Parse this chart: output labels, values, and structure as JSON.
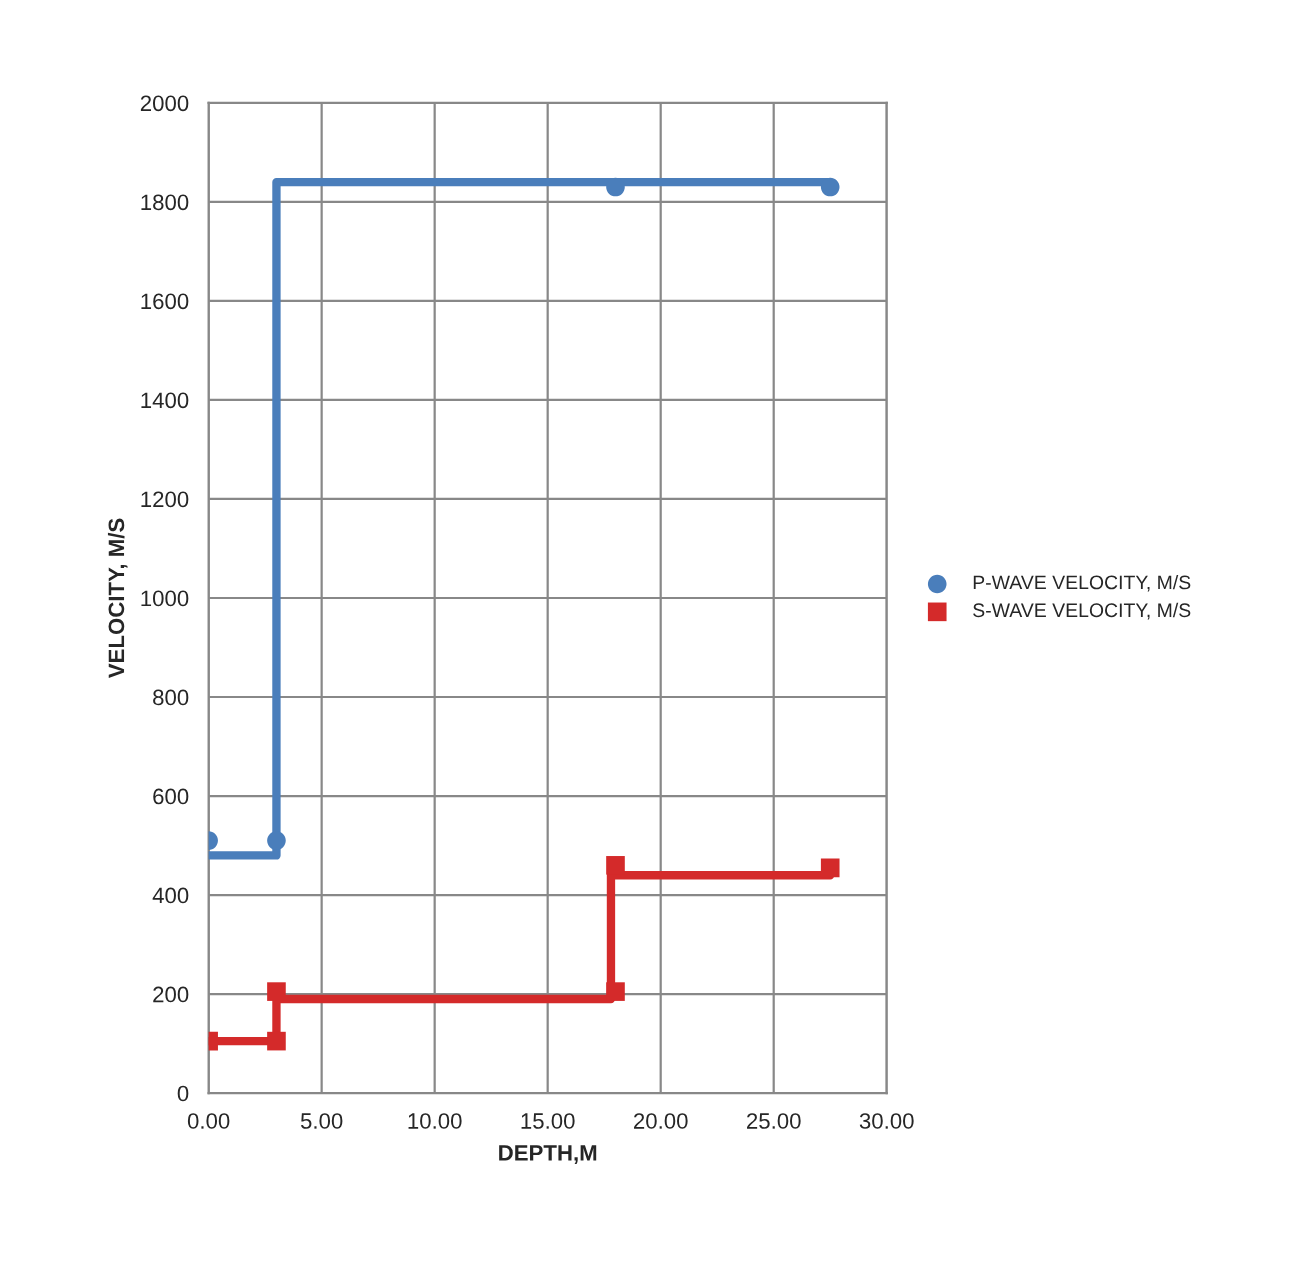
{
  "chart_data": {
    "type": "scatter",
    "xlabel": "DEPTH,M",
    "ylabel": "VELOCITY, M/S",
    "series": [
      {
        "name": "P-WAVE VELOCITY, M/S",
        "marker": "circle",
        "color": "#4a7ebb",
        "x": [
          0,
          3,
          18,
          27.5
        ],
        "values": [
          510,
          510,
          1830,
          1830
        ]
      },
      {
        "name": "S-WAVE VELOCITY, M/S",
        "marker": "square",
        "color": "#d42a2a",
        "x": [
          0,
          3,
          3,
          18,
          18,
          27.5
        ],
        "values": [
          105,
          105,
          205,
          205,
          460,
          455
        ]
      },
      {
        "type": "line",
        "color": "#4a7ebb",
        "x": [
          0,
          3,
          3,
          27.5
        ],
        "values": [
          480,
          480,
          1840,
          1840
        ]
      },
      {
        "type": "line",
        "color": "#d42a2a",
        "x": [
          0,
          3,
          3,
          17.8,
          17.8,
          27.5
        ],
        "values": [
          105,
          105,
          190,
          190,
          440,
          440
        ]
      }
    ],
    "xlim": [
      0,
      30
    ],
    "xticks": [
      {
        "value": 0,
        "label": "0.00"
      },
      {
        "value": 5,
        "label": "5.00"
      },
      {
        "value": 10,
        "label": "10.00"
      },
      {
        "value": 15,
        "label": "15.00"
      },
      {
        "value": 20,
        "label": "20.00"
      },
      {
        "value": 25,
        "label": "25.00"
      },
      {
        "value": 30,
        "label": "30.00"
      }
    ],
    "ylim": [
      0,
      2000
    ],
    "yticks": [
      0,
      200,
      400,
      600,
      800,
      1000,
      1200,
      1400,
      1600,
      1800,
      2000
    ],
    "grid": true,
    "legend": "right"
  }
}
